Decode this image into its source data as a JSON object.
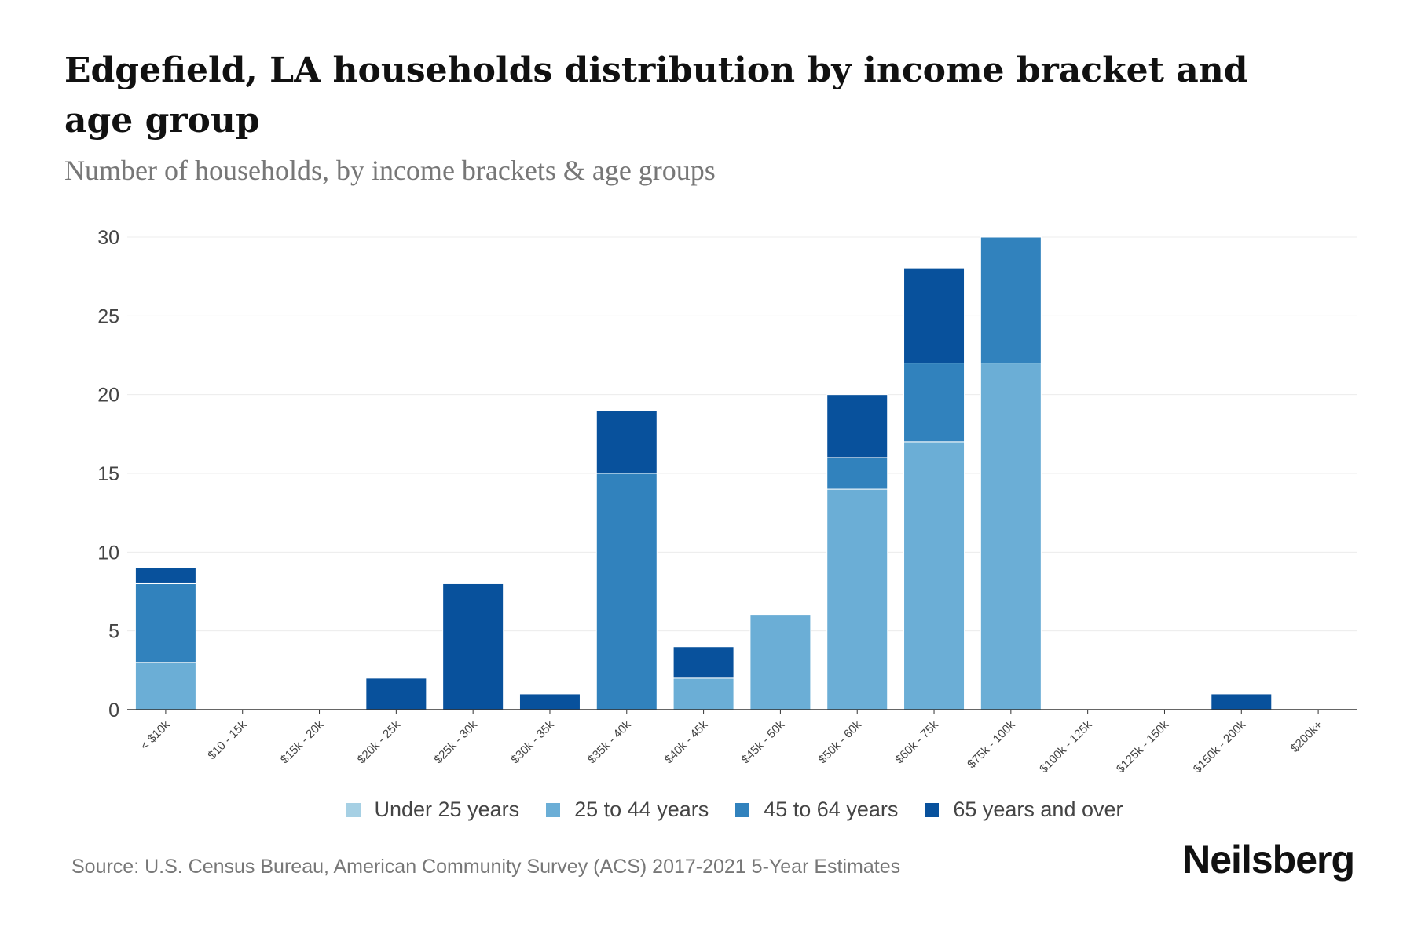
{
  "title": "Edgefield, LA households distribution by income bracket and age group",
  "subtitle": "Number of households, by income brackets & age groups",
  "source": "Source: U.S. Census Bureau, American Community Survey (ACS) 2017-2021 5-Year Estimates",
  "logo": "Neilsberg",
  "chart_data": {
    "type": "bar",
    "stacked": true,
    "title": "Edgefield, LA households distribution by income bracket and age group",
    "xlabel": "",
    "ylabel": "",
    "ylim": [
      0,
      30
    ],
    "yticks": [
      0,
      5,
      10,
      15,
      20,
      25,
      30
    ],
    "grid": true,
    "legend_position": "bottom",
    "categories": [
      "< $10k",
      "$10 - 15k",
      "$15k - 20k",
      "$20k - 25k",
      "$25k - 30k",
      "$30k - 35k",
      "$35k - 40k",
      "$40k - 45k",
      "$45k - 50k",
      "$50k - 60k",
      "$60k - 75k",
      "$75k - 100k",
      "$100k - 125k",
      "$125k - 150k",
      "$150k - 200k",
      "$200k+"
    ],
    "series": [
      {
        "name": "Under 25 years",
        "color": "#a6d0e4",
        "values": [
          0,
          0,
          0,
          0,
          0,
          0,
          0,
          0,
          0,
          0,
          0,
          0,
          0,
          0,
          0,
          0
        ]
      },
      {
        "name": "25 to 44 years",
        "color": "#6baed6",
        "values": [
          3,
          0,
          0,
          0,
          0,
          0,
          0,
          2,
          6,
          14,
          17,
          22,
          0,
          0,
          0,
          0
        ]
      },
      {
        "name": "45 to 64 years",
        "color": "#3182bd",
        "values": [
          5,
          0,
          0,
          0,
          0,
          0,
          15,
          0,
          0,
          2,
          5,
          8,
          0,
          0,
          0,
          0
        ]
      },
      {
        "name": "65 years and over",
        "color": "#08519c",
        "values": [
          1,
          0,
          0,
          2,
          8,
          1,
          4,
          2,
          0,
          4,
          6,
          0,
          0,
          0,
          1,
          0
        ]
      }
    ]
  }
}
